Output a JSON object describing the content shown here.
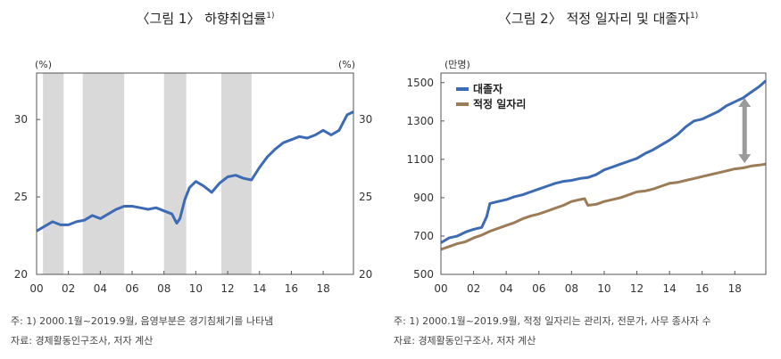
{
  "chart_data": [
    {
      "type": "line",
      "title": "〈그림 1〉 하향취업률",
      "title_footnote": "1)",
      "y_unit_left": "(%)",
      "y_unit_right": "(%)",
      "ylim": [
        20,
        33
      ],
      "yticks": [
        20,
        25,
        30
      ],
      "xlim": [
        2000,
        2019.9
      ],
      "xticks": [
        "00",
        "02",
        "04",
        "06",
        "08",
        "10",
        "12",
        "14",
        "16",
        "18"
      ],
      "xtick_values": [
        2000,
        2002,
        2004,
        2006,
        2008,
        2010,
        2012,
        2014,
        2016,
        2018
      ],
      "recession_bands": [
        [
          2000.4,
          2001.7
        ],
        [
          2002.9,
          2005.5
        ],
        [
          2008.0,
          2009.4
        ],
        [
          2011.6,
          2013.5
        ]
      ],
      "line_color": "#3d6ab5",
      "band_color": "#d9d9d9",
      "series": [
        {
          "name": "",
          "x": [
            2000.0,
            2000.5,
            2001.0,
            2001.5,
            2002.0,
            2002.5,
            2003.0,
            2003.5,
            2004.0,
            2004.5,
            2005.0,
            2005.5,
            2006.0,
            2006.5,
            2007.0,
            2007.5,
            2008.0,
            2008.5,
            2008.8,
            2009.0,
            2009.3,
            2009.6,
            2010.0,
            2010.5,
            2011.0,
            2011.5,
            2012.0,
            2012.5,
            2013.0,
            2013.5,
            2014.0,
            2014.5,
            2015.0,
            2015.5,
            2016.0,
            2016.5,
            2017.0,
            2017.5,
            2018.0,
            2018.5,
            2019.0,
            2019.5,
            2019.9
          ],
          "values": [
            22.8,
            23.1,
            23.4,
            23.2,
            23.2,
            23.4,
            23.5,
            23.8,
            23.6,
            23.9,
            24.2,
            24.4,
            24.4,
            24.3,
            24.2,
            24.3,
            24.1,
            23.9,
            23.3,
            23.6,
            24.8,
            25.6,
            26.0,
            25.7,
            25.3,
            25.9,
            26.3,
            26.4,
            26.2,
            26.1,
            26.9,
            27.6,
            28.1,
            28.5,
            28.7,
            28.9,
            28.8,
            29.0,
            29.3,
            29.0,
            29.3,
            30.3,
            30.5
          ]
        }
      ],
      "notes": [
        "주: 1) 2000.1월~2019.9월, 음영부분은 경기침체기를 나타냄",
        "자료: 경제활동인구조사, 저자 계산"
      ]
    },
    {
      "type": "line",
      "title": "〈그림 2〉 적정 일자리 및 대졸자",
      "title_footnote": "1)",
      "y_unit_left": "(만명)",
      "ylim": [
        500,
        1550
      ],
      "yticks": [
        500,
        700,
        900,
        1100,
        1300,
        1500
      ],
      "xlim": [
        2000,
        2019.9
      ],
      "xticks": [
        "00",
        "02",
        "04",
        "06",
        "08",
        "10",
        "12",
        "14",
        "16",
        "18"
      ],
      "xtick_values": [
        2000,
        2002,
        2004,
        2006,
        2008,
        2010,
        2012,
        2014,
        2016,
        2018
      ],
      "legend_position": "top-left",
      "arrow_x": 2018.6,
      "arrow_range": [
        1080,
        1420
      ],
      "series": [
        {
          "name": "대졸자",
          "color": "#3d6ab5",
          "x": [
            2000.0,
            2000.5,
            2001.0,
            2001.5,
            2002.0,
            2002.5,
            2002.8,
            2003.0,
            2003.5,
            2004.0,
            2004.5,
            2005.0,
            2005.5,
            2006.0,
            2006.5,
            2007.0,
            2007.5,
            2008.0,
            2008.5,
            2009.0,
            2009.5,
            2010.0,
            2010.5,
            2011.0,
            2011.5,
            2012.0,
            2012.5,
            2013.0,
            2013.5,
            2014.0,
            2014.5,
            2015.0,
            2015.5,
            2016.0,
            2016.5,
            2017.0,
            2017.5,
            2018.0,
            2018.5,
            2019.0,
            2019.5,
            2019.9
          ],
          "values": [
            665,
            690,
            700,
            720,
            735,
            745,
            800,
            870,
            880,
            890,
            905,
            915,
            930,
            945,
            960,
            975,
            985,
            990,
            1000,
            1005,
            1020,
            1045,
            1060,
            1075,
            1090,
            1105,
            1130,
            1150,
            1175,
            1200,
            1230,
            1270,
            1300,
            1310,
            1330,
            1350,
            1380,
            1400,
            1420,
            1450,
            1480,
            1510
          ]
        },
        {
          "name": "적정 일자리",
          "color": "#9c7b57",
          "x": [
            2000.0,
            2000.5,
            2001.0,
            2001.5,
            2002.0,
            2002.5,
            2003.0,
            2003.5,
            2004.0,
            2004.5,
            2005.0,
            2005.5,
            2006.0,
            2006.5,
            2007.0,
            2007.5,
            2008.0,
            2008.5,
            2008.8,
            2009.0,
            2009.5,
            2010.0,
            2010.5,
            2011.0,
            2011.5,
            2012.0,
            2012.5,
            2013.0,
            2013.5,
            2014.0,
            2014.5,
            2015.0,
            2015.5,
            2016.0,
            2016.5,
            2017.0,
            2017.5,
            2018.0,
            2018.5,
            2019.0,
            2019.5,
            2019.9
          ],
          "values": [
            630,
            645,
            660,
            670,
            690,
            705,
            725,
            740,
            755,
            770,
            790,
            805,
            815,
            830,
            845,
            860,
            880,
            890,
            895,
            860,
            865,
            880,
            890,
            900,
            915,
            930,
            935,
            945,
            960,
            975,
            980,
            990,
            1000,
            1010,
            1020,
            1030,
            1040,
            1050,
            1055,
            1065,
            1070,
            1075
          ]
        }
      ],
      "notes": [
        "주: 1) 2000.1월~2019.9월, 적정 일자리는 관리자, 전문가, 사무 종사자 수",
        "자료: 경제활동인구조사, 저자 계산"
      ]
    }
  ]
}
